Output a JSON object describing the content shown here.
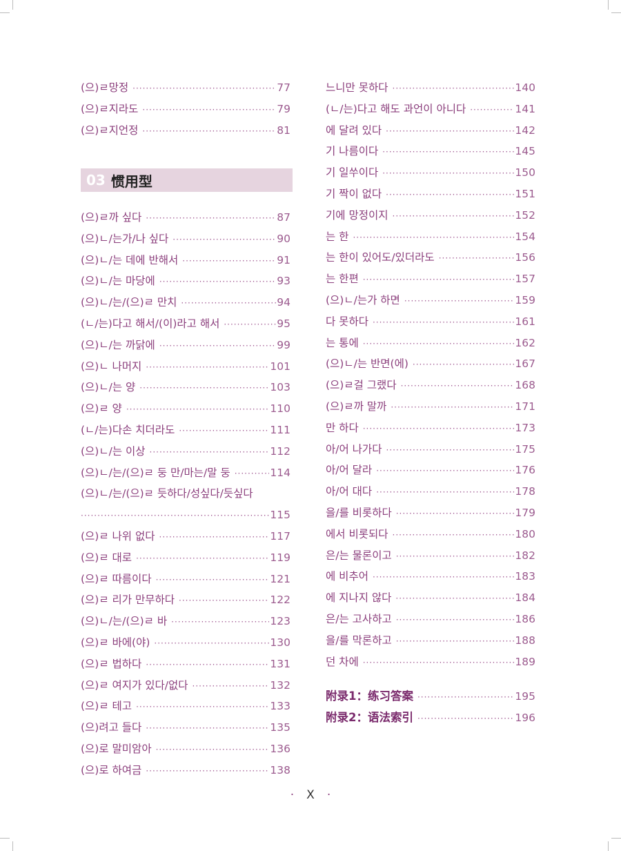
{
  "left_top": [
    {
      "title": "(으)ㄹ망정",
      "page": "77"
    },
    {
      "title": "(으)ㄹ지라도",
      "page": "79"
    },
    {
      "title": "(으)ㄹ지언정",
      "page": "81"
    }
  ],
  "section": {
    "number": "03",
    "title": "惯用型"
  },
  "left_entries": [
    {
      "title": "(으)ㄹ까 싶다",
      "page": "87"
    },
    {
      "title": "(으)ㄴ/는가/나 싶다",
      "page": "90"
    },
    {
      "title": "(으)ㄴ/는 데에 반해서",
      "page": "91"
    },
    {
      "title": "(으)ㄴ/는 마당에",
      "page": "93"
    },
    {
      "title": "(으)ㄴ/는/(으)ㄹ 만치",
      "page": "94"
    },
    {
      "title": "(ㄴ/는)다고 해서/(이)라고 해서",
      "page": "95"
    },
    {
      "title": "(으)ㄴ/는 까닭에",
      "page": "99"
    },
    {
      "title": "(으)ㄴ 나머지",
      "page": "101"
    },
    {
      "title": "(으)ㄴ/는 양",
      "page": "103"
    },
    {
      "title": "(으)ㄹ 양",
      "page": "110"
    },
    {
      "title": "(ㄴ/는)다손 치더라도",
      "page": "111"
    },
    {
      "title": "(으)ㄴ/는 이상",
      "page": "112"
    },
    {
      "title": "(으)ㄴ/는/(으)ㄹ 둥 만/마는/말 둥",
      "page": "114"
    },
    {
      "title": "(으)ㄴ/는/(으)ㄹ 듯하다/성싶다/듯싶다",
      "page": "115",
      "wrap": true
    },
    {
      "title": "(으)ㄹ 나위 없다",
      "page": "117"
    },
    {
      "title": "(으)ㄹ 대로",
      "page": "119"
    },
    {
      "title": "(으)ㄹ 따름이다",
      "page": "121"
    },
    {
      "title": "(으)ㄹ 리가 만무하다",
      "page": "122"
    },
    {
      "title": "(으)ㄴ/는/(으)ㄹ 바",
      "page": "123"
    },
    {
      "title": "(으)ㄹ 바에(야)",
      "page": "130"
    },
    {
      "title": "(으)ㄹ 법하다",
      "page": "131"
    },
    {
      "title": "(으)ㄹ 여지가 있다/없다",
      "page": "132"
    },
    {
      "title": "(으)ㄹ 테고",
      "page": "133"
    },
    {
      "title": "(으)려고 들다",
      "page": "135"
    },
    {
      "title": "(으)로 말미암아",
      "page": "136"
    },
    {
      "title": "(으)로 하여금",
      "page": "138"
    }
  ],
  "right_entries": [
    {
      "title": "느니만 못하다",
      "page": "140"
    },
    {
      "title": "(ㄴ/는)다고 해도 과언이 아니다",
      "page": "141"
    },
    {
      "title": "에 달려 있다",
      "page": "142"
    },
    {
      "title": "기 나름이다",
      "page": "145"
    },
    {
      "title": "기 일쑤이다",
      "page": "150"
    },
    {
      "title": "기 짝이 없다",
      "page": "151"
    },
    {
      "title": "기에 망정이지",
      "page": "152"
    },
    {
      "title": "는 한",
      "page": "154"
    },
    {
      "title": "는 한이 있어도/있더라도",
      "page": "156"
    },
    {
      "title": "는 한편",
      "page": "157"
    },
    {
      "title": "(으)ㄴ/는가 하면",
      "page": "159"
    },
    {
      "title": "다 못하다",
      "page": "161"
    },
    {
      "title": "는 통에",
      "page": "162"
    },
    {
      "title": "(으)ㄴ/는 반면(에)",
      "page": "167"
    },
    {
      "title": "(으)ㄹ걸 그랬다",
      "page": "168"
    },
    {
      "title": "(으)ㄹ까 말까",
      "page": "171"
    },
    {
      "title": "만 하다",
      "page": "173"
    },
    {
      "title": "아/어 나가다",
      "page": "175"
    },
    {
      "title": "아/어 달라",
      "page": "176"
    },
    {
      "title": "아/어 대다",
      "page": "178"
    },
    {
      "title": "을/를 비롯하다",
      "page": "179"
    },
    {
      "title": "에서 비롯되다",
      "page": "180"
    },
    {
      "title": "은/는 물론이고",
      "page": "182"
    },
    {
      "title": "에 비추어",
      "page": "183"
    },
    {
      "title": "에 지나지 않다",
      "page": "184"
    },
    {
      "title": "은/는 고사하고",
      "page": "186"
    },
    {
      "title": "을/를 막론하고",
      "page": "188"
    },
    {
      "title": "던 차에",
      "page": "189"
    }
  ],
  "appendix": [
    {
      "title": "附录1：练习答案",
      "page": "195"
    },
    {
      "title": "附录2：语法索引",
      "page": "196"
    }
  ],
  "footer": {
    "page_label": "X"
  },
  "colors": {
    "text": "#8b3e7c",
    "section_band": "#e6d4df"
  }
}
